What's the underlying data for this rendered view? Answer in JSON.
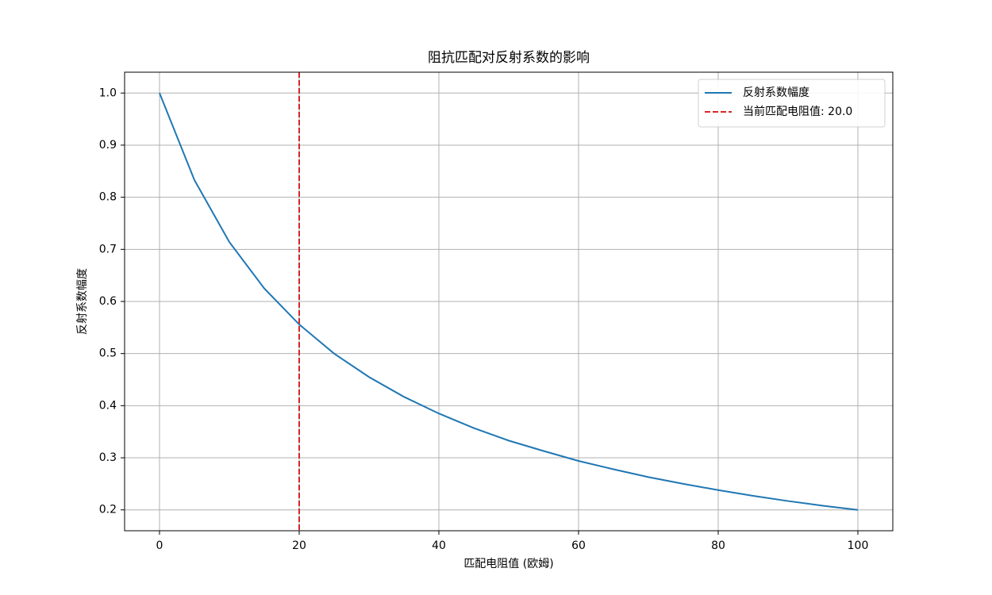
{
  "chart_data": {
    "type": "line",
    "title": "阻抗匹配对反射系数的影响",
    "x_label": "匹配电阻值 (欧姆)",
    "y_label": "反射系数幅度",
    "x": [
      0,
      5,
      10,
      15,
      20,
      25,
      30,
      35,
      40,
      45,
      50,
      55,
      60,
      65,
      70,
      75,
      80,
      85,
      90,
      95,
      100
    ],
    "series": [
      {
        "name": "反射系数幅度",
        "color": "#1f77b4",
        "values": [
          1.0,
          0.833,
          0.714,
          0.625,
          0.556,
          0.5,
          0.455,
          0.417,
          0.385,
          0.357,
          0.333,
          0.313,
          0.294,
          0.278,
          0.263,
          0.25,
          0.238,
          0.227,
          0.217,
          0.208,
          0.2
        ]
      }
    ],
    "vlines": [
      {
        "name": "当前匹配电阻值: 20.0",
        "x": 20,
        "color": "#d62728"
      }
    ],
    "xlim": [
      -5,
      105
    ],
    "ylim": [
      0.16,
      1.04
    ],
    "xticks": [
      0,
      20,
      40,
      60,
      80,
      100
    ],
    "yticks": [
      {
        "value": 1.0,
        "label": "1.0"
      },
      0.9,
      0.8,
      0.7,
      0.6,
      0.5,
      0.4,
      0.3,
      0.2
    ],
    "grid": true,
    "legend": "upper right"
  }
}
